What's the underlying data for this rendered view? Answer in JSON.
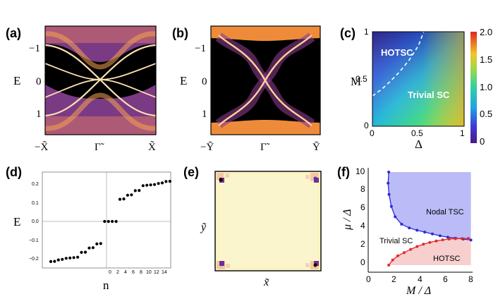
{
  "chart_data": [
    {
      "panel": "(a)",
      "type": "heatmap",
      "description": "spectral function E vs k",
      "ylabel": "E",
      "y_ticks": [
        "−1",
        "0",
        "1"
      ],
      "x_ticks": [
        "−X̃",
        "Γ̃",
        "X̃"
      ],
      "ylim": [
        1.5,
        -1.5
      ]
    },
    {
      "panel": "(b)",
      "type": "heatmap",
      "ylabel": "E",
      "y_ticks": [
        "−1",
        "0",
        "1"
      ],
      "x_ticks": [
        "−Ỹ",
        "Γ̃",
        "Ỹ"
      ],
      "ylim": [
        1.5,
        -1.5
      ]
    },
    {
      "panel": "(c)",
      "type": "heatmap",
      "xlabel": "Δ",
      "ylabel": "M",
      "x_ticks": [
        "0",
        "0.5",
        "1"
      ],
      "y_ticks": [
        "0",
        "0.5",
        "1"
      ],
      "xlim": [
        0,
        1
      ],
      "ylim": [
        0,
        1
      ],
      "colorbar_ticks": [
        "2.0",
        "1.5",
        "1.0",
        "0.5",
        "0"
      ],
      "colorbar_range": [
        0,
        2.0
      ],
      "boundary": {
        "x": [
          0,
          0.1,
          0.2,
          0.3,
          0.4,
          0.5,
          0.56
        ],
        "y": [
          0.32,
          0.39,
          0.48,
          0.58,
          0.7,
          0.85,
          1.0
        ]
      },
      "annotations": [
        "HOTSC",
        "Trivial SC"
      ]
    },
    {
      "panel": "(d)",
      "type": "scatter",
      "xlabel": "n",
      "ylabel": "E",
      "x_ticks": [
        "0",
        "2",
        "4",
        "6",
        "8",
        "10",
        "12",
        "14"
      ],
      "y_ticks": [
        "0.2",
        "0.1",
        "0.0",
        "−0.1",
        "−0.2"
      ],
      "ylim": [
        -0.24,
        0.24
      ],
      "n": [
        -15,
        -14,
        -13,
        -12,
        -11,
        -10,
        -9,
        -8,
        -7,
        -6,
        -5,
        -4,
        -3,
        -2,
        -1,
        0,
        1,
        2,
        3,
        4,
        5,
        6,
        7,
        8,
        9,
        10,
        11,
        12,
        13,
        14,
        15,
        16
      ],
      "E": [
        -0.223,
        -0.222,
        -0.214,
        -0.211,
        -0.205,
        -0.203,
        -0.201,
        -0.199,
        -0.172,
        -0.171,
        -0.148,
        -0.146,
        -0.125,
        -0.123,
        0.0,
        0.0,
        0.0,
        0.0,
        0.123,
        0.125,
        0.146,
        0.148,
        0.171,
        0.172,
        0.199,
        0.201,
        0.203,
        0.205,
        0.211,
        0.214,
        0.222,
        0.223
      ]
    },
    {
      "panel": "(e)",
      "type": "heatmap",
      "xlabel": "x̃",
      "ylabel": "ỹ",
      "description": "corner-localized states"
    },
    {
      "panel": "(f)",
      "type": "line",
      "xlabel": "M / Δ",
      "ylabel": "μ / Δ",
      "x_ticks": [
        "0",
        "2",
        "4",
        "6",
        "8"
      ],
      "y_ticks": [
        "10",
        "8",
        "6",
        "4",
        "2",
        "0"
      ],
      "xlim": [
        0,
        8
      ],
      "ylim": [
        -0.8,
        10.5
      ],
      "series": [
        {
          "name": "Nodal TSC boundary",
          "color": "#2a2ad6",
          "x": [
            1.6,
            1.55,
            1.62,
            1.8,
            2.1,
            2.6,
            3.2,
            3.8,
            4.4,
            5.0,
            5.6,
            6.2,
            6.8,
            7.4,
            8.0
          ],
          "y": [
            10.0,
            8.8,
            7.6,
            6.3,
            5.2,
            4.4,
            4.0,
            3.75,
            3.55,
            3.35,
            3.15,
            3.0,
            2.9,
            2.8,
            2.7
          ]
        },
        {
          "name": "HOTSC boundary",
          "color": "#e02a2a",
          "x": [
            1.6,
            1.9,
            2.3,
            2.8,
            3.3,
            3.8,
            4.3,
            4.8,
            5.3,
            5.8,
            6.3,
            6.8,
            7.3,
            7.8
          ],
          "y": [
            0.0,
            0.55,
            1.0,
            1.35,
            1.7,
            2.0,
            2.25,
            2.45,
            2.6,
            2.72,
            2.8,
            2.84,
            2.86,
            2.87
          ]
        }
      ],
      "annotations": [
        "Nodal TSC",
        "Trivial SC",
        "HOTSC"
      ]
    }
  ],
  "labels": {
    "a": "(a)",
    "b": "(b)",
    "c": "(c)",
    "d": "(d)",
    "e": "(e)",
    "f": "(f)"
  },
  "colors": {
    "dark": "#000000",
    "band": "#f7a440",
    "purple": "#5a2a78",
    "nodal_fill": "#b7b7f7",
    "hotsc_fill": "#f7cccc",
    "lattice": "#faf3c3"
  }
}
